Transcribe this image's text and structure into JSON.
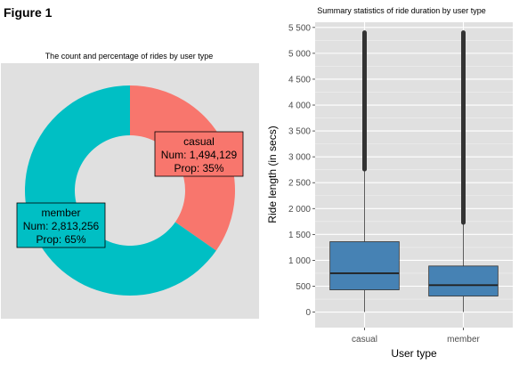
{
  "figure_title": "Figure 1",
  "colors": {
    "panel_bg": "#e0e0e0",
    "grid_major": "#ffffff",
    "grid_minor": "#f0f0f0",
    "casual": "#f8766d",
    "member": "#00bfc4",
    "box_fill": "#4682b4",
    "outlier": "#333333",
    "text": "#000000",
    "tick_text": "#4d4d4d"
  },
  "chart_data": [
    {
      "type": "pie",
      "variant": "donut",
      "title": "The count and percentage of rides by user type",
      "slices": [
        {
          "name": "casual",
          "count": 1494129,
          "count_label": "Num: 1,494,129",
          "prop_label": "Prop: 35%",
          "percent": 35
        },
        {
          "name": "member",
          "count": 2813256,
          "count_label": "Num: 2,813,256",
          "prop_label": "Prop: 65%",
          "percent": 65
        }
      ]
    },
    {
      "type": "box",
      "title": "Summary statistics of ride duration by user type",
      "xlabel": "User type",
      "ylabel": "Ride length (in secs)",
      "ylim": [
        -300,
        5600
      ],
      "yticks": [
        0,
        500,
        1000,
        1500,
        2000,
        2500,
        3000,
        3500,
        4000,
        4500,
        5000,
        5500
      ],
      "ytick_labels": [
        "0",
        "500",
        "1 000",
        "1 500",
        "2 000",
        "2 500",
        "3 000",
        "3 500",
        "4 000",
        "4 500",
        "5 000",
        "5 500"
      ],
      "grid": true,
      "categories": [
        "casual",
        "member"
      ],
      "boxes": [
        {
          "name": "casual",
          "min": 0,
          "q1": 430,
          "median": 750,
          "q3": 1360,
          "whisker_high": 2760,
          "outliers_from": 2760,
          "outliers_to": 5400
        },
        {
          "name": "member",
          "min": 0,
          "q1": 310,
          "median": 520,
          "q3": 890,
          "whisker_high": 1730,
          "outliers_from": 1730,
          "outliers_to": 5400
        }
      ]
    }
  ]
}
